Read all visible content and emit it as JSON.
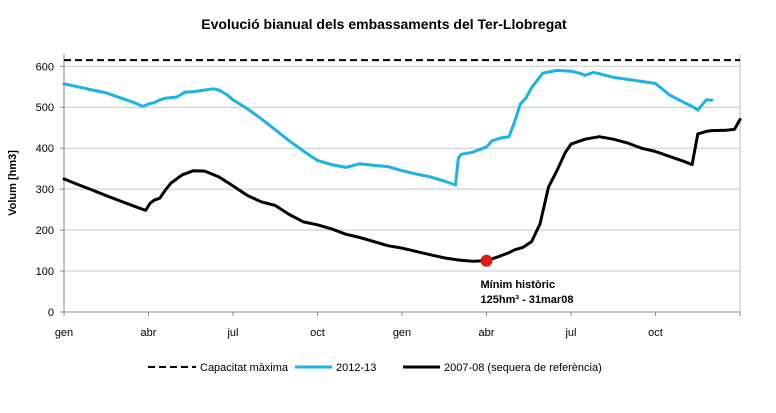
{
  "chart_data": {
    "type": "line",
    "title": "Evolució bianual dels embassaments del Ter-Llobregat",
    "ylabel": "Volum [hm3]",
    "xlabel": "",
    "ylim": [
      0,
      630
    ],
    "yticks": [
      0,
      100,
      200,
      300,
      400,
      500,
      600
    ],
    "xlim": [
      0,
      24
    ],
    "xticks": [
      {
        "x": 0,
        "label": "gen"
      },
      {
        "x": 3,
        "label": "abr"
      },
      {
        "x": 6,
        "label": "jul"
      },
      {
        "x": 9,
        "label": "oct"
      },
      {
        "x": 12,
        "label": "gen"
      },
      {
        "x": 15,
        "label": "abr"
      },
      {
        "x": 18,
        "label": "jul"
      },
      {
        "x": 21,
        "label": "oct"
      }
    ],
    "grid": "horizontal",
    "capacity": {
      "name": "Capacitat màxima",
      "value": 615,
      "color": "#000000",
      "style": "dashed"
    },
    "series": [
      {
        "name": "2012-13",
        "color": "#1ab3e6",
        "x": [
          0,
          0.5,
          1,
          1.5,
          2,
          2.5,
          2.8,
          3,
          3.2,
          3.4,
          3.6,
          4,
          4.3,
          4.6,
          5,
          5.3,
          5.5,
          5.8,
          6,
          6.5,
          7,
          7.5,
          8,
          8.5,
          9,
          9.5,
          10,
          10.5,
          11,
          11.5,
          12,
          12.5,
          13,
          13.5,
          13.9,
          14.0,
          14.1,
          14.5,
          15,
          15.2,
          15.5,
          15.8,
          16,
          16.2,
          16.4,
          16.6,
          17,
          17.5,
          18,
          18.3,
          18.5,
          18.8,
          19,
          19.5,
          20,
          20.5,
          21,
          21.5,
          22,
          22.3,
          22.5,
          22.8,
          23
        ],
        "values": [
          557,
          550,
          542,
          535,
          523,
          511,
          502,
          508,
          511,
          518,
          522,
          525,
          537,
          538,
          542,
          545,
          542,
          530,
          518,
          497,
          472,
          445,
          418,
          393,
          370,
          360,
          353,
          362,
          358,
          355,
          345,
          337,
          330,
          320,
          310,
          375,
          385,
          390,
          403,
          418,
          425,
          428,
          465,
          508,
          522,
          548,
          583,
          590,
          588,
          583,
          578,
          585,
          582,
          573,
          568,
          563,
          558,
          530,
          512,
          502,
          493,
          518,
          517
        ]
      },
      {
        "name": "2007-08 (sequera de referència)",
        "color": "#000000",
        "x": [
          0,
          0.5,
          1,
          1.5,
          2,
          2.5,
          2.9,
          3.05,
          3.2,
          3.4,
          3.6,
          3.8,
          4.2,
          4.6,
          5,
          5.5,
          6,
          6.5,
          7,
          7.5,
          8,
          8.5,
          9,
          9.5,
          10,
          10.5,
          11,
          11.5,
          12,
          12.5,
          13,
          13.5,
          14,
          14.5,
          15,
          15.2,
          15.5,
          15.8,
          16,
          16.3,
          16.6,
          16.9,
          17.2,
          17.5,
          17.8,
          18,
          18.5,
          19,
          19.5,
          20,
          20.5,
          21,
          21.5,
          22,
          22.3,
          22.5,
          22.8,
          23,
          23.5,
          23.8,
          24
        ],
        "values": [
          325,
          311,
          298,
          284,
          271,
          258,
          248,
          265,
          273,
          278,
          298,
          315,
          335,
          345,
          344,
          330,
          308,
          285,
          269,
          260,
          238,
          220,
          213,
          203,
          190,
          182,
          172,
          162,
          156,
          148,
          140,
          132,
          127,
          124,
          125,
          130,
          137,
          145,
          152,
          158,
          172,
          215,
          305,
          345,
          390,
          410,
          422,
          428,
          422,
          413,
          400,
          392,
          380,
          368,
          360,
          435,
          441,
          443,
          444,
          446,
          470
        ]
      }
    ],
    "annotations": [
      {
        "text": "Mínim històric",
        "x": 15,
        "y": 125,
        "marker_color": "#e01919"
      },
      {
        "text": "125hm³ - 31mar08"
      }
    ],
    "legend": {
      "position": "bottom"
    }
  }
}
